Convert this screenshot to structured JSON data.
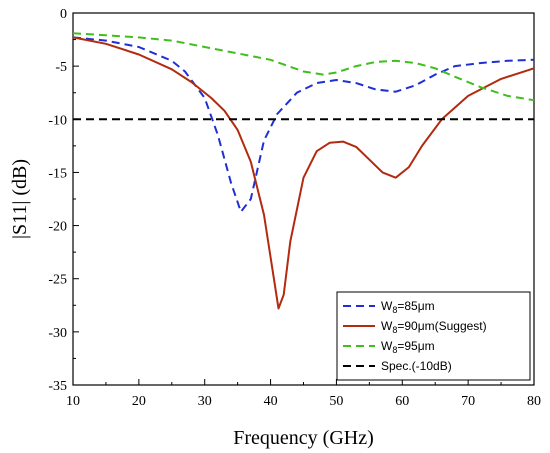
{
  "chart_data": {
    "type": "line",
    "xlabel": "Frequency (GHz)",
    "ylabel": "|S11| (dB)",
    "xlim": [
      10,
      80
    ],
    "ylim": [
      -35,
      0
    ],
    "xticks": [
      10,
      20,
      30,
      40,
      50,
      60,
      70,
      80
    ],
    "yticks": [
      0,
      -5,
      -10,
      -15,
      -20,
      -25,
      -30,
      -35
    ],
    "legend_position": "bottom-right",
    "series": [
      {
        "name": "W8=85μm",
        "label_main": "W",
        "label_sub": "8",
        "label_rest": "=85μm",
        "color": "#1f2fd6",
        "dash": "dashed",
        "x": [
          10,
          15,
          20,
          25,
          27,
          30,
          32,
          34,
          35.5,
          37,
          39,
          41,
          44,
          47,
          50,
          53,
          56,
          59,
          62,
          65,
          68,
          72,
          76,
          80
        ],
        "y": [
          -2.3,
          -2.6,
          -3.2,
          -4.5,
          -5.5,
          -8.0,
          -11.5,
          -16.0,
          -18.7,
          -17.5,
          -12.0,
          -9.5,
          -7.5,
          -6.6,
          -6.3,
          -6.6,
          -7.2,
          -7.4,
          -6.8,
          -5.8,
          -5.0,
          -4.7,
          -4.5,
          -4.4
        ]
      },
      {
        "name": "W8=90μm(Suggest)",
        "label_main": "W",
        "label_sub": "8",
        "label_rest": "=90μm(Suggest)",
        "color": "#b22a10",
        "dash": "solid",
        "x": [
          10,
          15,
          20,
          25,
          28,
          31,
          33,
          35,
          37,
          39,
          40.5,
          41.2,
          42,
          43,
          45,
          47,
          49,
          51,
          53,
          55,
          57,
          59,
          61,
          63,
          66,
          70,
          75,
          80
        ],
        "y": [
          -2.3,
          -2.9,
          -3.9,
          -5.3,
          -6.5,
          -8.0,
          -9.2,
          -11.0,
          -14.0,
          -19.0,
          -25.0,
          -27.8,
          -26.5,
          -21.5,
          -15.5,
          -13.0,
          -12.2,
          -12.1,
          -12.6,
          -13.8,
          -15.0,
          -15.5,
          -14.5,
          -12.5,
          -10.0,
          -7.8,
          -6.2,
          -5.2
        ]
      },
      {
        "name": "W8=95μm",
        "label_main": "W",
        "label_sub": "8",
        "label_rest": "=95μm",
        "color": "#3fbf1c",
        "dash": "dashed",
        "x": [
          10,
          15,
          20,
          25,
          30,
          35,
          40,
          45,
          48,
          50,
          53,
          56,
          59,
          62,
          65,
          68,
          72,
          76,
          80
        ],
        "y": [
          -1.9,
          -2.1,
          -2.3,
          -2.6,
          -3.2,
          -3.8,
          -4.4,
          -5.5,
          -5.8,
          -5.6,
          -5.0,
          -4.6,
          -4.5,
          -4.7,
          -5.2,
          -6.0,
          -7.0,
          -7.8,
          -8.2
        ]
      },
      {
        "name": "Spec.(-10dB)",
        "label_main": "Spec.(-10dB)",
        "label_sub": "",
        "label_rest": "",
        "color": "#000000",
        "dash": "dashed",
        "x": [
          10,
          80
        ],
        "y": [
          -10,
          -10
        ]
      }
    ]
  }
}
